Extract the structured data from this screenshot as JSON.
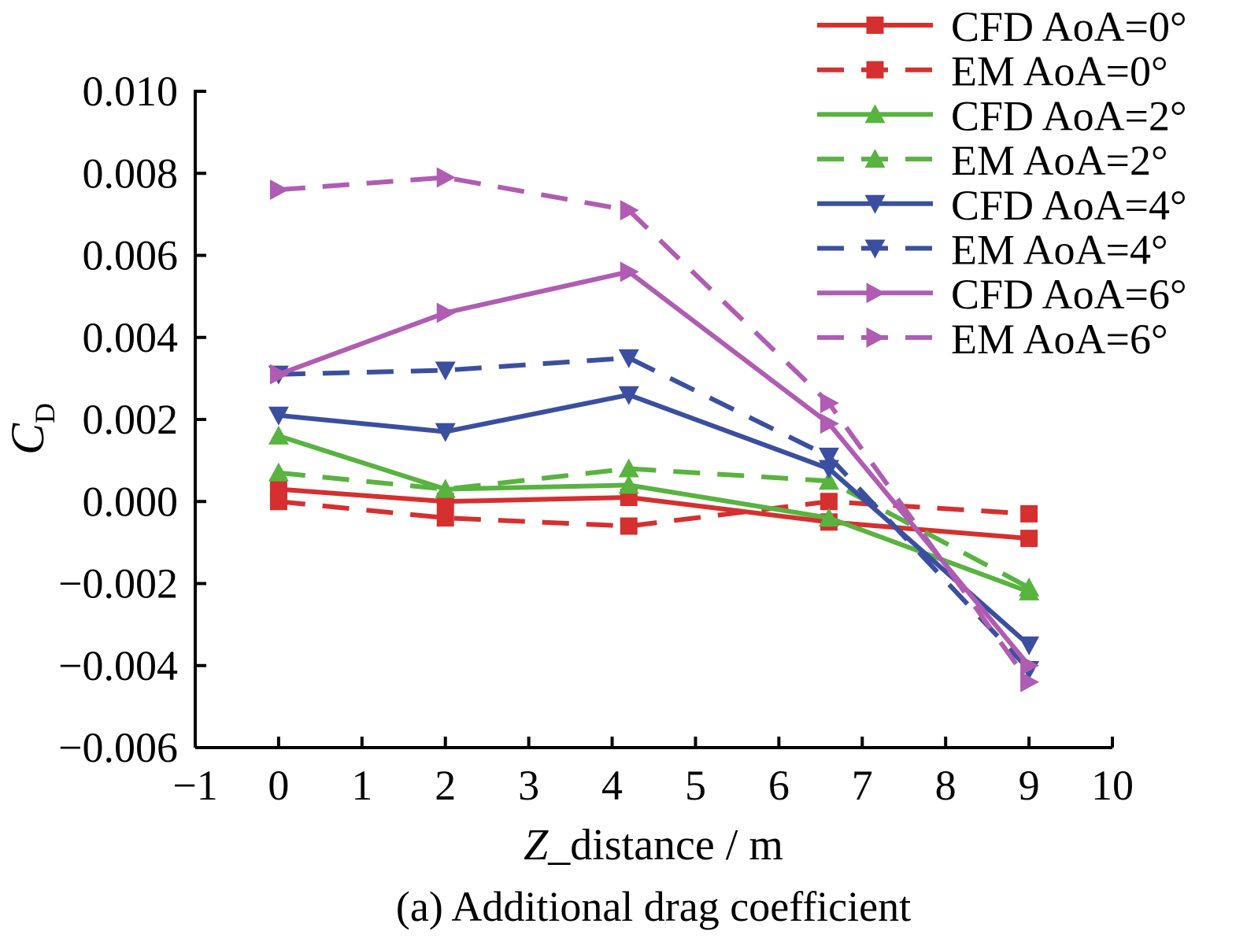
{
  "chart_data": {
    "type": "line",
    "caption": "(a) Additional drag coefficient",
    "xlabel_italic": "Z",
    "xlabel_rest": "_distance / m",
    "ylabel_main": "C",
    "ylabel_sub": "D",
    "xlim": [
      -1,
      10
    ],
    "ylim": [
      -0.006,
      0.01
    ],
    "xticks": [
      -1,
      0,
      1,
      2,
      3,
      4,
      5,
      6,
      7,
      8,
      9,
      10
    ],
    "yticks": [
      -0.006,
      -0.004,
      -0.002,
      0.0,
      0.002,
      0.004,
      0.006,
      0.008,
      0.01
    ],
    "ytick_labels": [
      "−0.006",
      "−0.004",
      "−0.002",
      "0.000",
      "0.002",
      "0.004",
      "0.006",
      "0.008",
      "0.010"
    ],
    "xtick_labels": [
      "−1",
      "0",
      "1",
      "2",
      "3",
      "4",
      "5",
      "6",
      "7",
      "8",
      "9",
      "10"
    ],
    "grid": false,
    "legend_position": "top-right",
    "x": [
      0,
      2,
      4.2,
      6.6,
      9
    ],
    "series": [
      {
        "name": "CFD AoA=0°",
        "color": "#d62f2f",
        "dash": false,
        "marker": "square",
        "values": [
          0.0003,
          0.0,
          0.0001,
          -0.0005,
          -0.0009
        ]
      },
      {
        "name": "EM AoA=0°",
        "color": "#d62f2f",
        "dash": true,
        "marker": "square",
        "values": [
          0.0,
          -0.0004,
          -0.0006,
          0.0,
          -0.0003
        ]
      },
      {
        "name": "CFD AoA=2°",
        "color": "#58b33f",
        "dash": false,
        "marker": "triangle-up",
        "values": [
          0.0016,
          0.0003,
          0.0004,
          -0.0004,
          -0.0022
        ]
      },
      {
        "name": "EM AoA=2°",
        "color": "#58b33f",
        "dash": true,
        "marker": "triangle-up",
        "values": [
          0.0007,
          0.0003,
          0.0008,
          0.0005,
          -0.0021
        ]
      },
      {
        "name": "CFD AoA=4°",
        "color": "#3b4fa0",
        "dash": false,
        "marker": "triangle-down",
        "values": [
          0.0021,
          0.0017,
          0.0026,
          0.0008,
          -0.0035
        ]
      },
      {
        "name": "EM AoA=4°",
        "color": "#3b4fa0",
        "dash": true,
        "marker": "triangle-down",
        "values": [
          0.0031,
          0.0032,
          0.0035,
          0.0011,
          -0.0041
        ]
      },
      {
        "name": "CFD AoA=6°",
        "color": "#b05cb3",
        "dash": false,
        "marker": "triangle-right",
        "values": [
          0.0031,
          0.0046,
          0.0056,
          0.0019,
          -0.004
        ]
      },
      {
        "name": "EM AoA=6°",
        "color": "#b05cb3",
        "dash": true,
        "marker": "triangle-right",
        "values": [
          0.0076,
          0.0079,
          0.0071,
          0.0024,
          -0.0044
        ]
      }
    ]
  }
}
